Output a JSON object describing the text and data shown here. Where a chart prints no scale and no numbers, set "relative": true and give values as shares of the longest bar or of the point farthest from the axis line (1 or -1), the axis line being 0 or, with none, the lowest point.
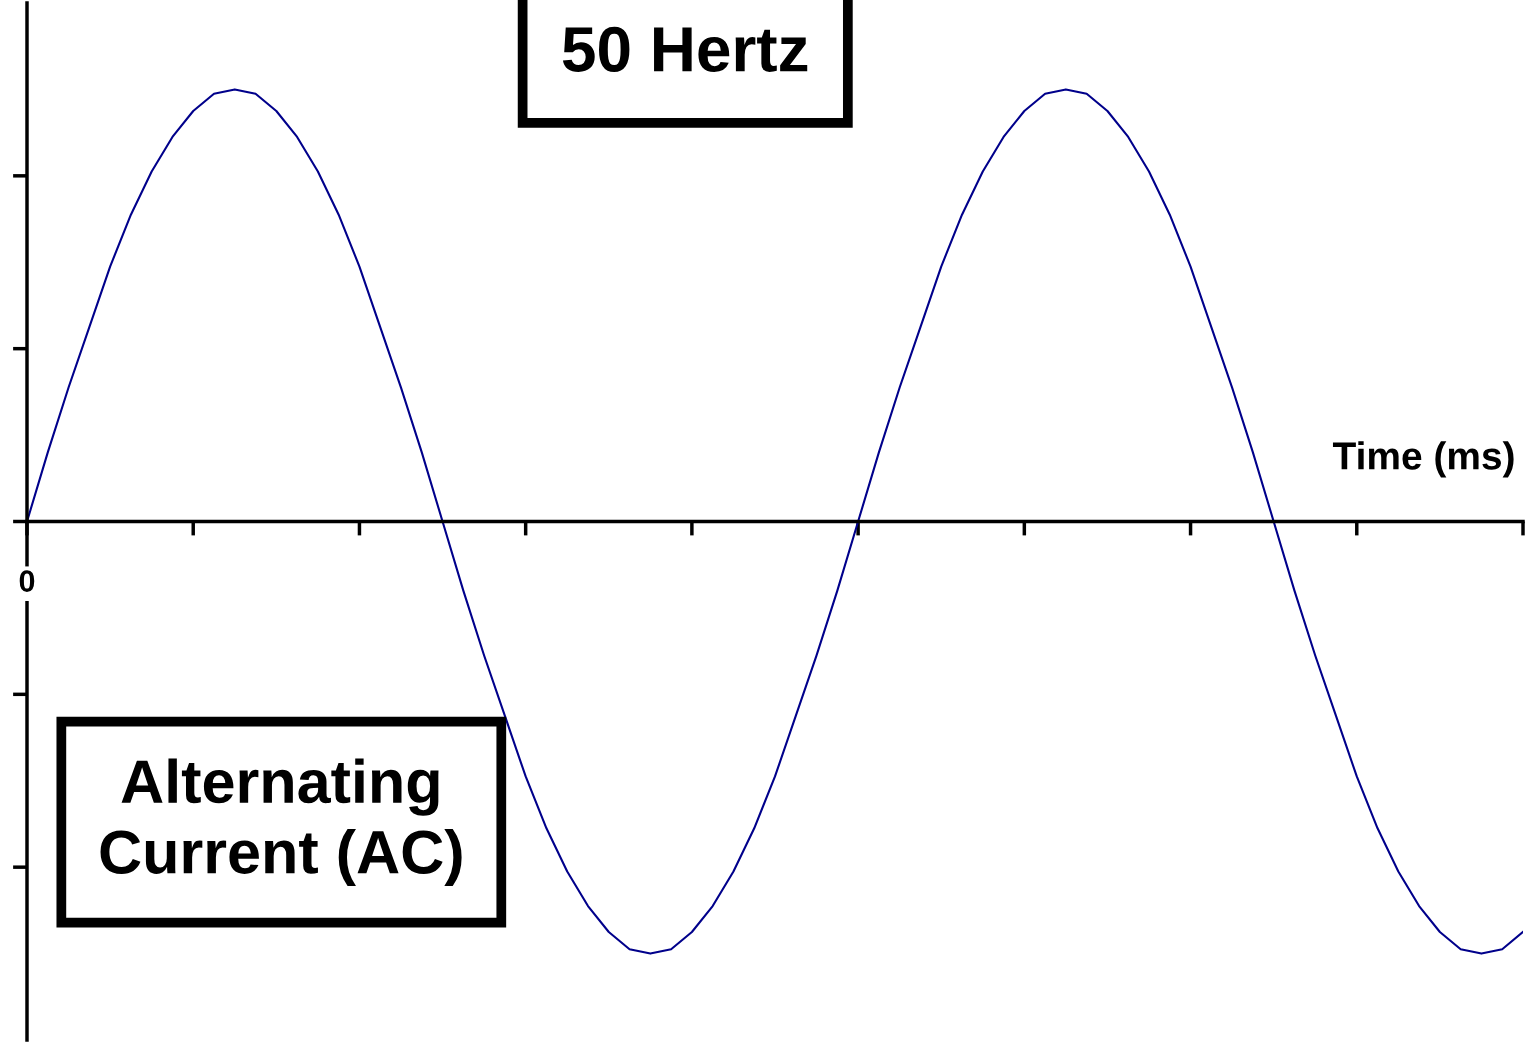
{
  "chart_data": {
    "type": "line",
    "relative": true,
    "xlabel": "Time (ms)",
    "annotations": [
      "50 Hertz",
      "Alternating\nCurrent (AC)",
      "0"
    ],
    "categories": [
      null,
      null,
      null,
      null,
      null,
      null,
      null,
      null,
      null,
      null,
      null,
      null,
      null,
      null,
      null,
      null,
      null,
      null,
      null,
      null,
      null,
      null,
      null,
      null,
      null,
      null,
      null,
      null,
      null,
      null,
      null,
      null,
      null,
      null,
      null,
      null,
      null,
      null,
      null,
      null,
      null,
      null,
      null,
      null,
      null,
      null,
      null,
      null,
      null,
      null,
      null,
      null,
      null,
      null,
      null,
      null,
      null,
      null,
      null,
      null,
      null,
      null,
      null,
      null,
      null,
      null,
      null,
      null,
      null,
      null,
      null,
      null,
      null
    ],
    "series": [
      {
        "color": "#00008b",
        "values": [
          0,
          0.16,
          0.31,
          0.45,
          0.59,
          0.71,
          0.81,
          0.89,
          0.95,
          0.99,
          1,
          0.99,
          0.95,
          0.89,
          0.81,
          0.71,
          0.59,
          0.45,
          0.31,
          0.16,
          0,
          -0.16,
          -0.31,
          -0.45,
          -0.59,
          -0.71,
          -0.81,
          -0.89,
          -0.95,
          -0.99,
          -1,
          -0.99,
          -0.95,
          -0.89,
          -0.81,
          -0.71,
          -0.59,
          -0.45,
          -0.31,
          -0.16,
          0,
          0.16,
          0.31,
          0.45,
          0.59,
          0.71,
          0.81,
          0.89,
          0.95,
          0.99,
          1,
          0.99,
          0.95,
          0.89,
          0.81,
          0.71,
          0.59,
          0.45,
          0.31,
          0.16,
          0,
          -0.16,
          -0.31,
          -0.45,
          -0.59,
          -0.71,
          -0.81,
          -0.89,
          -0.95,
          -0.99,
          -1,
          -0.99,
          -0.95
        ]
      }
    ],
    "marker": "none",
    "line_style": "solid"
  }
}
